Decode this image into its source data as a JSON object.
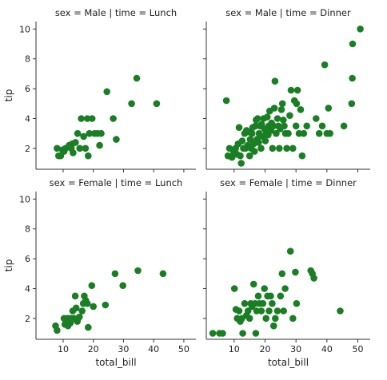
{
  "chart_data": {
    "type": "scatter",
    "xlabel": "total_bill",
    "ylabel": "tip",
    "xlim": [
      1,
      54
    ],
    "ylim": [
      0.6,
      10.5
    ],
    "xticks": [
      "10",
      "20",
      "30",
      "40",
      "50"
    ],
    "yticks": [
      "2",
      "4",
      "6",
      "8",
      "10"
    ],
    "point_color": "#1a7f24",
    "panels": [
      {
        "title": "sex = Male | time = Lunch",
        "points": [
          [
            8.0,
            2.0
          ],
          [
            8.5,
            1.5
          ],
          [
            9.2,
            1.5
          ],
          [
            9.8,
            1.9
          ],
          [
            10.3,
            1.8
          ],
          [
            10.8,
            2.0
          ],
          [
            12.0,
            2.2
          ],
          [
            12.7,
            2.0
          ],
          [
            13.3,
            1.7
          ],
          [
            13.0,
            2.3
          ],
          [
            14.1,
            2.4
          ],
          [
            14.8,
            3.0
          ],
          [
            15.5,
            2.0
          ],
          [
            16.0,
            4.0
          ],
          [
            16.8,
            2.8
          ],
          [
            17.4,
            2.0
          ],
          [
            18.0,
            4.0
          ],
          [
            18.3,
            1.5
          ],
          [
            18.7,
            3.0
          ],
          [
            19.6,
            4.0
          ],
          [
            20.4,
            3.0
          ],
          [
            21.4,
            3.0
          ],
          [
            22.1,
            2.2
          ],
          [
            22.6,
            3.0
          ],
          [
            24.5,
            5.8
          ],
          [
            26.6,
            4.0
          ],
          [
            27.6,
            2.6
          ],
          [
            32.7,
            5.0
          ],
          [
            34.4,
            6.7
          ],
          [
            41.0,
            5.0
          ]
        ]
      },
      {
        "title": "sex = Male | time = Dinner",
        "points": [
          [
            7.5,
            5.2
          ],
          [
            8.0,
            1.5
          ],
          [
            8.5,
            2.0
          ],
          [
            9.3,
            1.4
          ],
          [
            9.9,
            1.7
          ],
          [
            10.2,
            1.8
          ],
          [
            10.5,
            2.0
          ],
          [
            10.9,
            1.6
          ],
          [
            11.3,
            2.3
          ],
          [
            11.6,
            3.4
          ],
          [
            12.0,
            1.5
          ],
          [
            12.3,
            1.0
          ],
          [
            12.6,
            2.5
          ],
          [
            13.0,
            2.0
          ],
          [
            13.4,
            3.0
          ],
          [
            13.7,
            2.0
          ],
          [
            14.0,
            3.2
          ],
          [
            14.4,
            2.2
          ],
          [
            14.7,
            3.1
          ],
          [
            15.0,
            1.5
          ],
          [
            15.2,
            2.6
          ],
          [
            15.5,
            2.0
          ],
          [
            15.8,
            3.0
          ],
          [
            16.0,
            3.4
          ],
          [
            16.3,
            2.3
          ],
          [
            16.6,
            1.8
          ],
          [
            16.9,
            3.5
          ],
          [
            17.1,
            3.9
          ],
          [
            17.4,
            2.6
          ],
          [
            17.6,
            4.0
          ],
          [
            17.9,
            2.4
          ],
          [
            18.1,
            3.0
          ],
          [
            18.4,
            3.5
          ],
          [
            18.7,
            2.0
          ],
          [
            18.9,
            3.6
          ],
          [
            19.2,
            2.8
          ],
          [
            19.5,
            4.0
          ],
          [
            19.8,
            3.3
          ],
          [
            20.1,
            2.5
          ],
          [
            20.4,
            3.0
          ],
          [
            20.7,
            4.1
          ],
          [
            21.0,
            2.9
          ],
          [
            21.2,
            3.5
          ],
          [
            21.5,
            4.5
          ],
          [
            21.9,
            3.2
          ],
          [
            22.1,
            3.7
          ],
          [
            22.4,
            2.0
          ],
          [
            22.7,
            3.5
          ],
          [
            23.0,
            4.7
          ],
          [
            23.2,
            6.5
          ],
          [
            23.6,
            3.0
          ],
          [
            24.0,
            4.0
          ],
          [
            24.3,
            3.5
          ],
          [
            24.6,
            2.0
          ],
          [
            24.9,
            3.3
          ],
          [
            25.3,
            4.6
          ],
          [
            25.6,
            5.0
          ],
          [
            25.9,
            3.9
          ],
          [
            26.2,
            3.5
          ],
          [
            26.6,
            3.0
          ],
          [
            27.0,
            2.0
          ],
          [
            27.5,
            3.0
          ],
          [
            28.0,
            4.2
          ],
          [
            28.4,
            5.9
          ],
          [
            29.0,
            2.0
          ],
          [
            29.5,
            5.2
          ],
          [
            30.0,
            3.5
          ],
          [
            30.2,
            5.0
          ],
          [
            30.5,
            5.9
          ],
          [
            31.0,
            3.0
          ],
          [
            31.5,
            4.6
          ],
          [
            32.0,
            1.5
          ],
          [
            32.5,
            3.0
          ],
          [
            33.5,
            3.5
          ],
          [
            36.5,
            4.0
          ],
          [
            37.5,
            3.0
          ],
          [
            38.5,
            3.5
          ],
          [
            39.3,
            7.6
          ],
          [
            40.0,
            3.0
          ],
          [
            40.5,
            4.7
          ],
          [
            41.0,
            3.0
          ],
          [
            45.5,
            3.5
          ],
          [
            48.3,
            9.0
          ],
          [
            48.2,
            6.7
          ],
          [
            48.0,
            5.0
          ],
          [
            50.8,
            10.0
          ]
        ]
      },
      {
        "title": "sex = Female | time = Lunch",
        "points": [
          [
            7.5,
            1.5
          ],
          [
            8.0,
            1.2
          ],
          [
            10.3,
            2.0
          ],
          [
            10.6,
            1.6
          ],
          [
            11.0,
            1.8
          ],
          [
            11.3,
            2.0
          ],
          [
            11.6,
            1.5
          ],
          [
            12.0,
            2.0
          ],
          [
            12.4,
            1.7
          ],
          [
            12.8,
            2.0
          ],
          [
            13.2,
            2.5
          ],
          [
            13.6,
            2.0
          ],
          [
            14.0,
            3.5
          ],
          [
            14.3,
            2.7
          ],
          [
            14.7,
            1.8
          ],
          [
            15.0,
            2.0
          ],
          [
            15.4,
            2.1
          ],
          [
            16.3,
            2.5
          ],
          [
            16.7,
            3.0
          ],
          [
            17.0,
            3.5
          ],
          [
            17.5,
            3.2
          ],
          [
            18.0,
            3.0
          ],
          [
            18.3,
            1.4
          ],
          [
            19.5,
            4.2
          ],
          [
            20.0,
            2.8
          ],
          [
            24.0,
            2.9
          ],
          [
            27.2,
            5.0
          ],
          [
            29.8,
            4.2
          ],
          [
            34.8,
            5.2
          ],
          [
            43.1,
            5.0
          ]
        ]
      },
      {
        "title": "sex = Female | time = Dinner",
        "points": [
          [
            3.1,
            1.0
          ],
          [
            5.3,
            1.0
          ],
          [
            6.3,
            1.0
          ],
          [
            10.1,
            4.0
          ],
          [
            10.6,
            2.6
          ],
          [
            11.0,
            2.0
          ],
          [
            11.6,
            2.5
          ],
          [
            12.0,
            1.8
          ],
          [
            12.5,
            2.0
          ],
          [
            12.8,
            1.0
          ],
          [
            13.4,
            3.0
          ],
          [
            14.0,
            2.2
          ],
          [
            14.5,
            2.5
          ],
          [
            15.0,
            2.0
          ],
          [
            15.4,
            3.0
          ],
          [
            15.8,
            2.8
          ],
          [
            16.3,
            4.3
          ],
          [
            16.8,
            3.0
          ],
          [
            17.0,
            1.0
          ],
          [
            17.3,
            2.5
          ],
          [
            17.8,
            3.5
          ],
          [
            18.2,
            3.0
          ],
          [
            18.8,
            2.5
          ],
          [
            19.3,
            3.0
          ],
          [
            19.8,
            4.0
          ],
          [
            20.3,
            2.0
          ],
          [
            20.8,
            3.5
          ],
          [
            21.3,
            2.5
          ],
          [
            21.8,
            3.5
          ],
          [
            22.3,
            3.0
          ],
          [
            22.8,
            1.5
          ],
          [
            23.3,
            2.0
          ],
          [
            24.0,
            2.5
          ],
          [
            25.0,
            3.5
          ],
          [
            25.5,
            5.0
          ],
          [
            26.0,
            2.5
          ],
          [
            26.5,
            4.0
          ],
          [
            28.2,
            6.5
          ],
          [
            29.0,
            2.0
          ],
          [
            29.8,
            5.1
          ],
          [
            30.2,
            3.0
          ],
          [
            34.8,
            5.2
          ],
          [
            35.3,
            5.0
          ],
          [
            35.8,
            4.7
          ],
          [
            44.3,
            2.5
          ]
        ]
      }
    ]
  }
}
